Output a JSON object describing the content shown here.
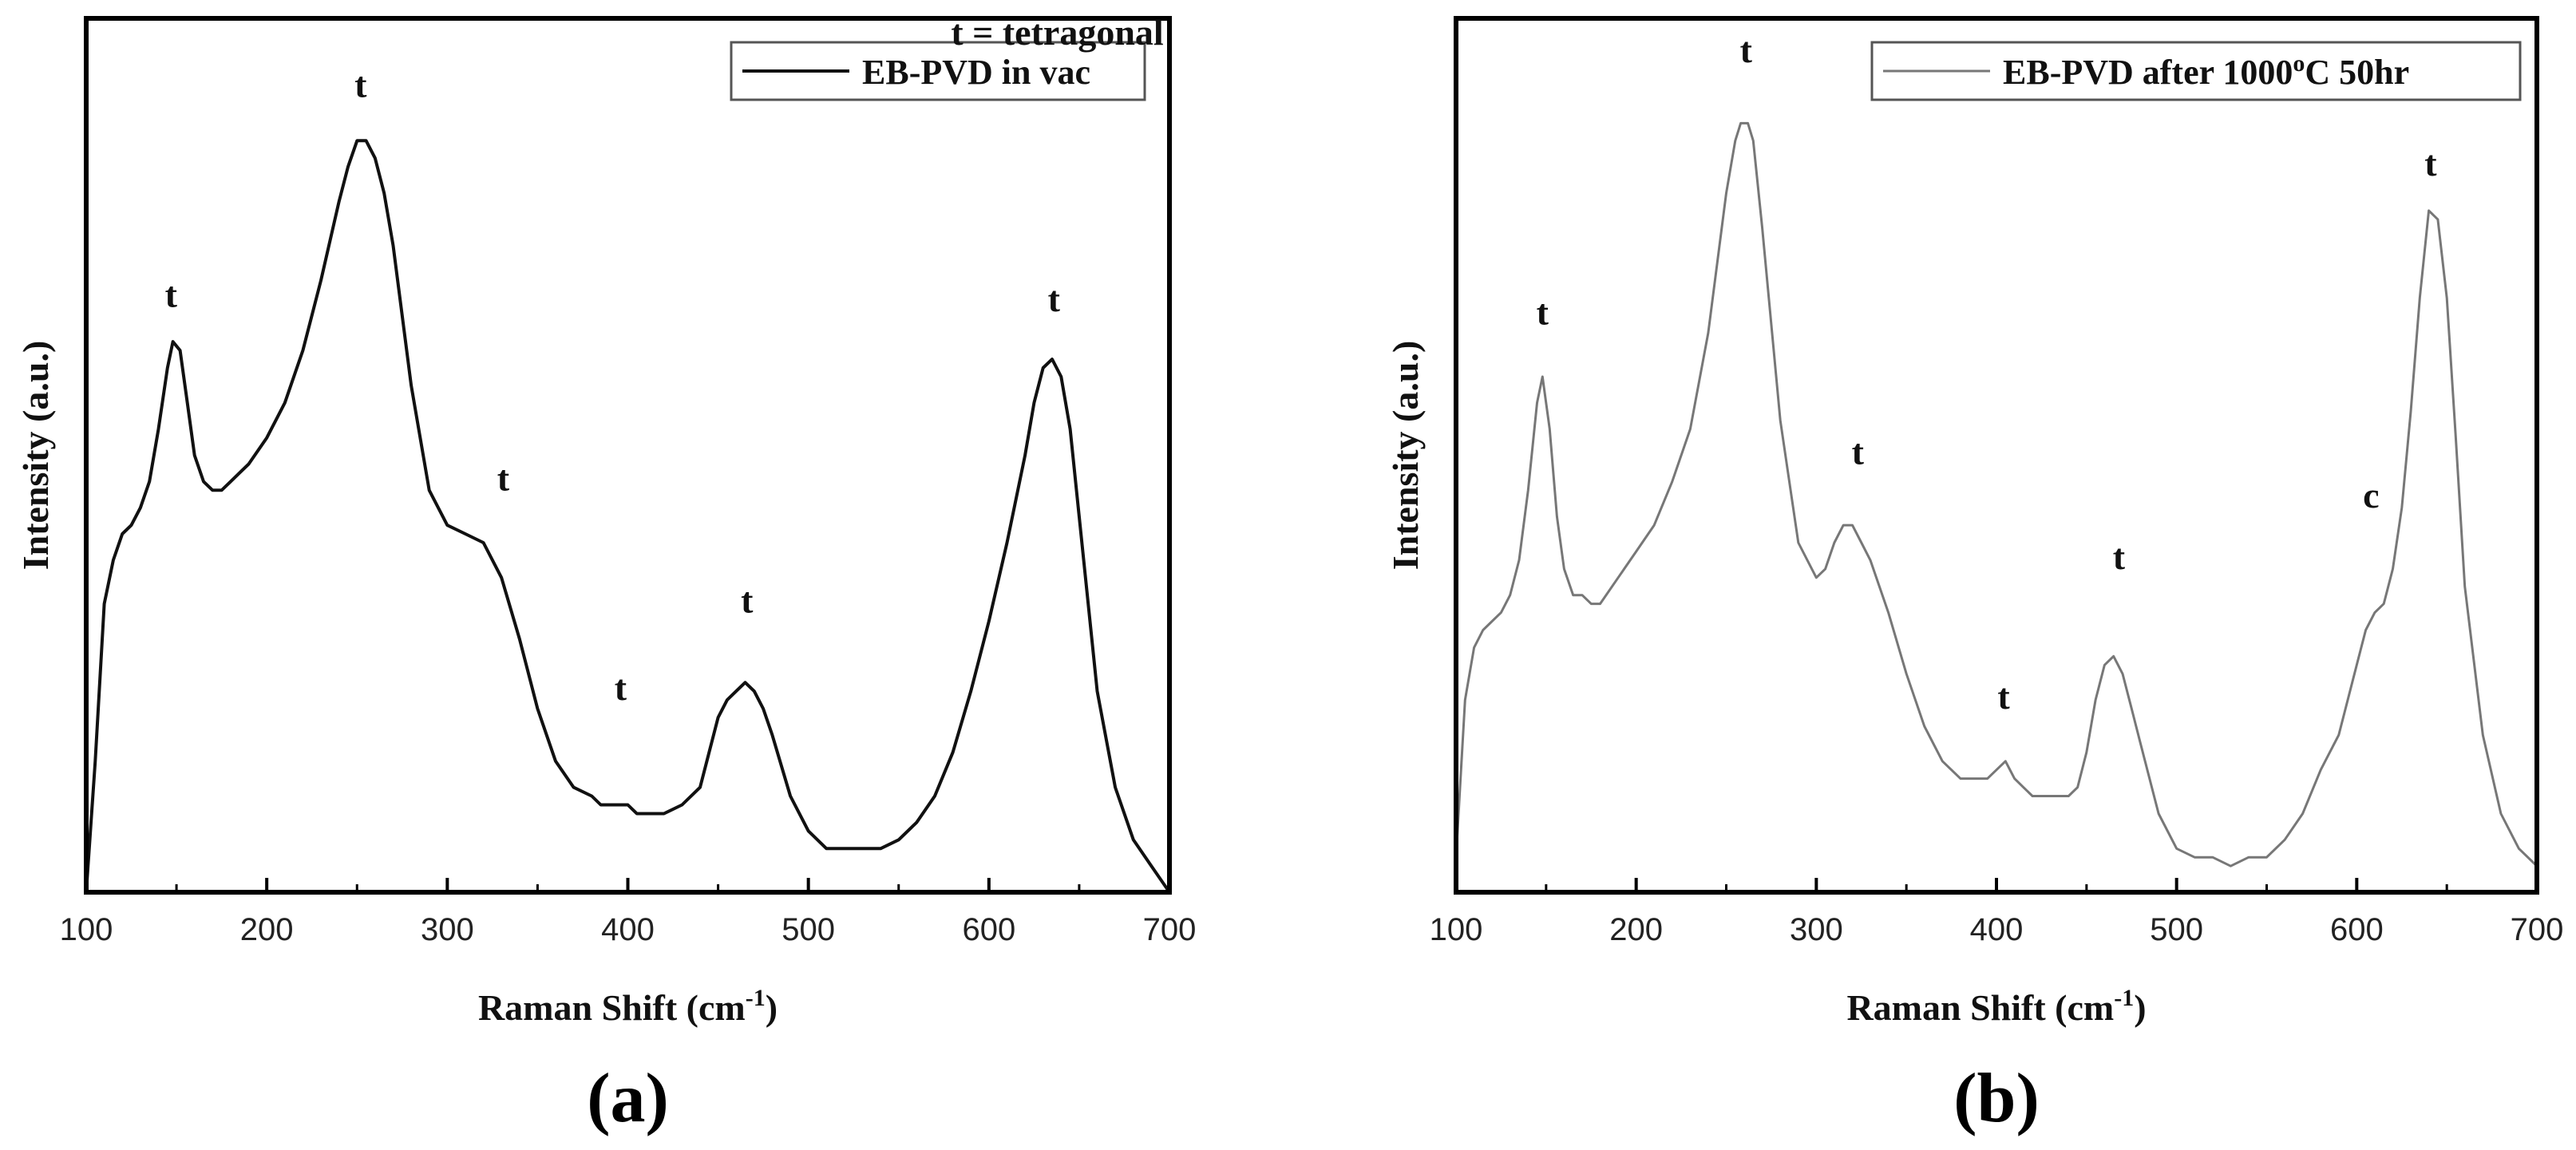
{
  "chart_data": [
    {
      "id": "a",
      "type": "line",
      "panel_label": "(a)",
      "xlabel_main": "Raman Shift (cm",
      "xlabel_sup": "-1",
      "xlabel_end": ")",
      "ylabel": "Intensity (a.u.)",
      "xlim": [
        100,
        700
      ],
      "ylim": [
        0,
        1
      ],
      "xticks": [
        100,
        200,
        300,
        400,
        500,
        600,
        700
      ],
      "yticks_shown": false,
      "legend": {
        "label": "EB-PVD in vac",
        "placement": "top-right"
      },
      "series": [
        {
          "name": "EB-PVD in vac",
          "color": "#111111",
          "x": [
            100,
            105,
            110,
            115,
            120,
            125,
            130,
            135,
            140,
            145,
            148,
            152,
            156,
            160,
            165,
            170,
            175,
            180,
            185,
            190,
            200,
            210,
            220,
            230,
            240,
            245,
            250,
            255,
            260,
            265,
            270,
            280,
            290,
            300,
            310,
            320,
            330,
            340,
            350,
            360,
            370,
            380,
            385,
            390,
            395,
            400,
            405,
            410,
            415,
            420,
            430,
            440,
            445,
            450,
            455,
            460,
            465,
            470,
            475,
            480,
            490,
            500,
            510,
            520,
            530,
            540,
            550,
            560,
            570,
            580,
            590,
            600,
            610,
            620,
            625,
            630,
            635,
            640,
            645,
            650,
            655,
            660,
            670,
            680,
            690,
            700
          ],
          "values": [
            0.0,
            0.15,
            0.33,
            0.38,
            0.41,
            0.42,
            0.44,
            0.47,
            0.53,
            0.6,
            0.63,
            0.62,
            0.56,
            0.5,
            0.47,
            0.46,
            0.46,
            0.47,
            0.48,
            0.49,
            0.52,
            0.56,
            0.62,
            0.7,
            0.79,
            0.83,
            0.86,
            0.86,
            0.84,
            0.8,
            0.74,
            0.58,
            0.46,
            0.42,
            0.41,
            0.4,
            0.36,
            0.29,
            0.21,
            0.15,
            0.12,
            0.11,
            0.1,
            0.1,
            0.1,
            0.1,
            0.09,
            0.09,
            0.09,
            0.09,
            0.1,
            0.12,
            0.16,
            0.2,
            0.22,
            0.23,
            0.24,
            0.23,
            0.21,
            0.18,
            0.11,
            0.07,
            0.05,
            0.05,
            0.05,
            0.05,
            0.06,
            0.08,
            0.11,
            0.16,
            0.23,
            0.31,
            0.4,
            0.5,
            0.56,
            0.6,
            0.61,
            0.59,
            0.53,
            0.43,
            0.33,
            0.23,
            0.12,
            0.06,
            0.03,
            0.0
          ]
        }
      ],
      "annotations": [
        {
          "text": "t",
          "x": 147,
          "y": 0.67
        },
        {
          "text": "t",
          "x": 252,
          "y": 0.91
        },
        {
          "text": "t",
          "x": 331,
          "y": 0.46
        },
        {
          "text": "t",
          "x": 396,
          "y": 0.22
        },
        {
          "text": "t",
          "x": 466,
          "y": 0.32
        },
        {
          "text": "t",
          "x": 636,
          "y": 0.665
        },
        {
          "text": "t = tetragonal",
          "x": 579,
          "y": 0.97
        }
      ]
    },
    {
      "id": "b",
      "type": "line",
      "panel_label": "(b)",
      "xlabel_main": "Raman Shift (cm",
      "xlabel_sup": "-1",
      "xlabel_end": ")",
      "ylabel": "Intensity (a.u.)",
      "xlim": [
        100,
        700
      ],
      "ylim": [
        0,
        1
      ],
      "xticks": [
        100,
        200,
        300,
        400,
        500,
        600,
        700
      ],
      "yticks_shown": false,
      "legend": {
        "label_main": "EB-PVD after 1000",
        "label_sup": "o",
        "label_end": "C 50hr",
        "placement": "top-right"
      },
      "series": [
        {
          "name": "EB-PVD after 1000oC 50hr",
          "color": "#777777",
          "x": [
            100,
            105,
            110,
            115,
            120,
            125,
            130,
            135,
            140,
            145,
            148,
            152,
            156,
            160,
            165,
            170,
            175,
            180,
            190,
            200,
            210,
            220,
            230,
            240,
            245,
            250,
            255,
            258,
            262,
            265,
            270,
            280,
            290,
            300,
            305,
            310,
            315,
            320,
            325,
            330,
            340,
            350,
            360,
            370,
            380,
            390,
            395,
            400,
            405,
            410,
            415,
            420,
            430,
            440,
            445,
            450,
            455,
            460,
            465,
            470,
            475,
            480,
            490,
            500,
            510,
            520,
            530,
            540,
            550,
            560,
            570,
            580,
            590,
            600,
            605,
            610,
            615,
            620,
            625,
            630,
            635,
            640,
            645,
            650,
            655,
            660,
            670,
            680,
            690,
            700
          ],
          "values": [
            0.04,
            0.22,
            0.28,
            0.3,
            0.31,
            0.32,
            0.34,
            0.38,
            0.46,
            0.56,
            0.59,
            0.53,
            0.43,
            0.37,
            0.34,
            0.34,
            0.33,
            0.33,
            0.36,
            0.39,
            0.42,
            0.47,
            0.53,
            0.64,
            0.72,
            0.8,
            0.86,
            0.88,
            0.88,
            0.86,
            0.76,
            0.54,
            0.4,
            0.36,
            0.37,
            0.4,
            0.42,
            0.42,
            0.4,
            0.38,
            0.32,
            0.25,
            0.19,
            0.15,
            0.13,
            0.13,
            0.13,
            0.14,
            0.15,
            0.13,
            0.12,
            0.11,
            0.11,
            0.11,
            0.12,
            0.16,
            0.22,
            0.26,
            0.27,
            0.25,
            0.21,
            0.17,
            0.09,
            0.05,
            0.04,
            0.04,
            0.03,
            0.04,
            0.04,
            0.06,
            0.09,
            0.14,
            0.18,
            0.26,
            0.3,
            0.32,
            0.33,
            0.37,
            0.44,
            0.55,
            0.68,
            0.78,
            0.77,
            0.68,
            0.52,
            0.35,
            0.18,
            0.09,
            0.05,
            0.03
          ]
        }
      ],
      "annotations": [
        {
          "text": "t",
          "x": 148,
          "y": 0.65
        },
        {
          "text": "t",
          "x": 261,
          "y": 0.95
        },
        {
          "text": "t",
          "x": 323,
          "y": 0.49
        },
        {
          "text": "t",
          "x": 404,
          "y": 0.21
        },
        {
          "text": "t",
          "x": 468,
          "y": 0.37
        },
        {
          "text": "c",
          "x": 608,
          "y": 0.44
        },
        {
          "text": "t",
          "x": 641,
          "y": 0.82
        }
      ]
    }
  ]
}
